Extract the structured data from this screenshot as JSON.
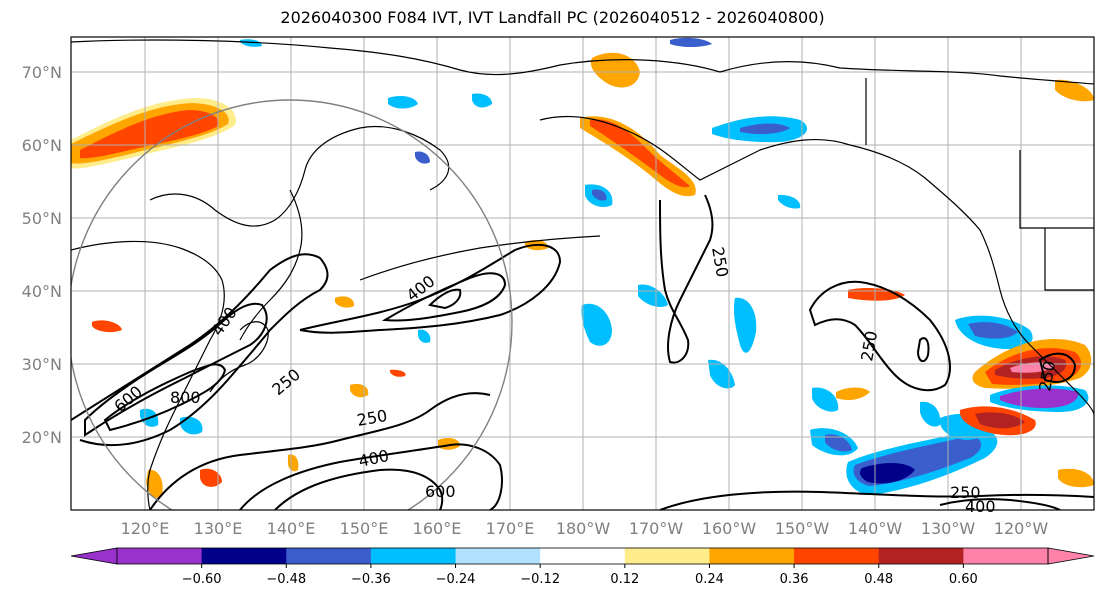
{
  "title": "2026040300 F084 IVT, IVT Landfall PC (2026040512 - 2026040800)",
  "lat_labels": [
    "70°N",
    "60°N",
    "50°N",
    "40°N",
    "30°N",
    "20°N"
  ],
  "lon_labels": [
    "120°E",
    "130°E",
    "140°E",
    "150°E",
    "160°E",
    "170°E",
    "180°W",
    "170°W",
    "160°W",
    "150°W",
    "140°W",
    "130°W",
    "120°W"
  ],
  "contour_labels": [
    "250",
    "250",
    "250",
    "250",
    "250",
    "250",
    "400",
    "400",
    "400",
    "400",
    "600",
    "600",
    "800"
  ],
  "colorbar": {
    "colors": [
      "#9932cc",
      "#00008b",
      "#3a5fcd",
      "#00bfff",
      "#b0e2ff",
      "#ffffff",
      "#ffec8b",
      "#ffa500",
      "#ff4500",
      "#b22222",
      "#ff82ab"
    ],
    "ticks": [
      "−0.60",
      "−0.48",
      "−0.36",
      "−0.24",
      "−0.12",
      "0.12",
      "0.24",
      "0.36",
      "0.48",
      "0.60"
    ]
  }
}
